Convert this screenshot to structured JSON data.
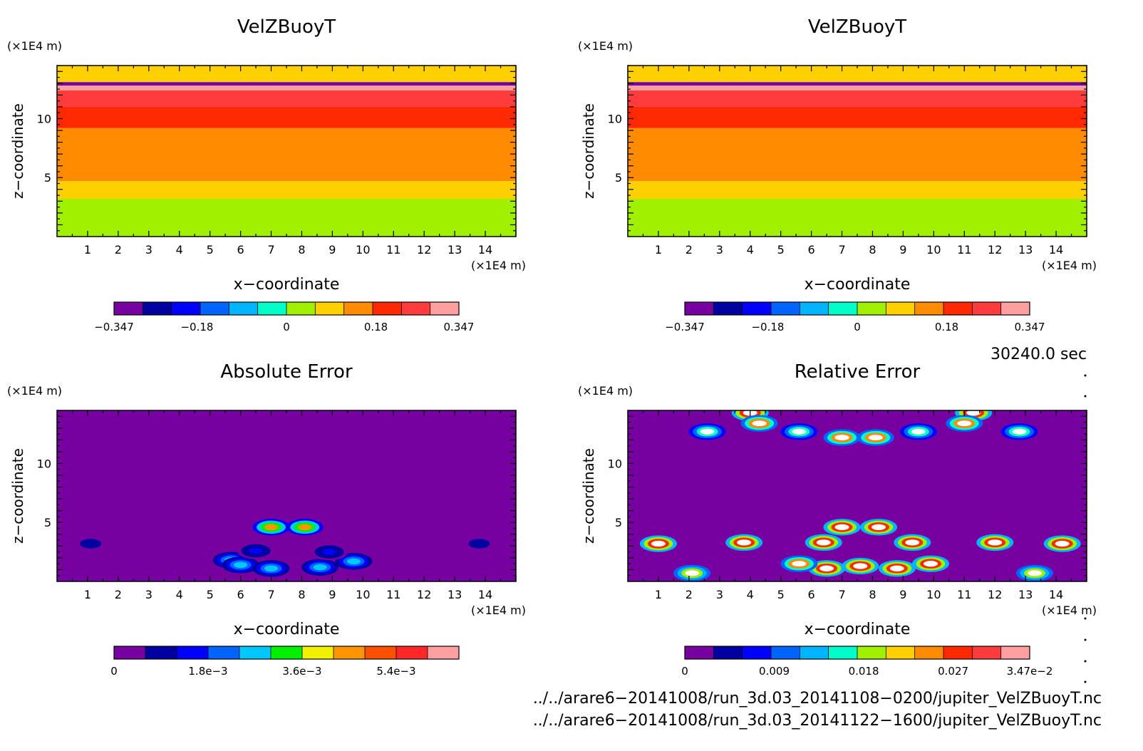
{
  "panels": [
    {
      "title": "VelZBuoyT",
      "z_unit": "(×1E4 m)",
      "x_unit": "(×1E4 m)",
      "xlabel": "x−coordinate",
      "ylabel": "z−coordinate",
      "x_ticks": [
        "1",
        "2",
        "3",
        "4",
        "5",
        "6",
        "7",
        "8",
        "9",
        "10",
        "11",
        "12",
        "13",
        "14"
      ],
      "z_ticks": [
        "5",
        "10"
      ],
      "colorbar": {
        "colors": [
          "#7700a0",
          "#0000a0",
          "#0000ff",
          "#0064ff",
          "#00b4ff",
          "#00ffc8",
          "#a0f000",
          "#ffd000",
          "#ff8c00",
          "#ff2800",
          "#ff3c3c",
          "#ffa0a0"
        ],
        "tick_labels": [
          "−0.347",
          "−0.18",
          "0",
          "0.18",
          "0.347"
        ]
      }
    },
    {
      "title": "VelZBuoyT",
      "z_unit": "(×1E4 m)",
      "x_unit": "(×1E4 m)",
      "xlabel": "x−coordinate",
      "ylabel": "z−coordinate",
      "x_ticks": [
        "1",
        "2",
        "3",
        "4",
        "5",
        "6",
        "7",
        "8",
        "9",
        "10",
        "11",
        "12",
        "13",
        "14"
      ],
      "z_ticks": [
        "5",
        "10"
      ],
      "colorbar": {
        "colors": [
          "#7700a0",
          "#0000a0",
          "#0000ff",
          "#0064ff",
          "#00b4ff",
          "#00ffc8",
          "#a0f000",
          "#ffd000",
          "#ff8c00",
          "#ff2800",
          "#ff3c3c",
          "#ffa0a0"
        ],
        "tick_labels": [
          "−0.347",
          "−0.18",
          "0",
          "0.18",
          "0.347"
        ]
      }
    },
    {
      "title": "Absolute Error",
      "z_unit": "(×1E4 m)",
      "x_unit": "(×1E4 m)",
      "xlabel": "x−coordinate",
      "ylabel": "z−coordinate",
      "x_ticks": [
        "1",
        "2",
        "3",
        "4",
        "5",
        "6",
        "7",
        "8",
        "9",
        "10",
        "11",
        "12",
        "13",
        "14"
      ],
      "z_ticks": [
        "5",
        "10"
      ],
      "colorbar": {
        "colors": [
          "#7700a0",
          "#0000a0",
          "#0000ff",
          "#0064ff",
          "#00c8ff",
          "#00f000",
          "#f0f000",
          "#ff9600",
          "#ff5000",
          "#ff2828",
          "#ffa0a0"
        ],
        "tick_labels": [
          "0",
          "1.8e−3",
          "3.6e−3",
          "5.4e−3"
        ]
      }
    },
    {
      "title": "Relative Error",
      "z_unit": "(×1E4 m)",
      "x_unit": "(×1E4 m)",
      "xlabel": "x−coordinate",
      "ylabel": "z−coordinate",
      "x_ticks": [
        "1",
        "2",
        "3",
        "4",
        "5",
        "6",
        "7",
        "8",
        "9",
        "10",
        "11",
        "12",
        "13",
        "14"
      ],
      "z_ticks": [
        "5",
        "10"
      ],
      "colorbar": {
        "colors": [
          "#7700a0",
          "#0000a0",
          "#0000ff",
          "#0064ff",
          "#00b4ff",
          "#00ffc8",
          "#a0f000",
          "#ffd000",
          "#ff8c00",
          "#ff2800",
          "#ff3c3c",
          "#ffa0a0"
        ],
        "tick_labels": [
          "0",
          "0.009",
          "0.018",
          "0.027",
          "3.47e−2"
        ]
      }
    }
  ],
  "time_label": "30240.0 sec",
  "file_paths": [
    "../../arare6−20141008/run_3d.03_20141108−0200/jupiter_VelZBuoyT.nc",
    "../../arare6−20141008/run_3d.03_20141122−1600/jupiter_VelZBuoyT.nc"
  ],
  "chart_data": [
    {
      "type": "heatmap",
      "title": "VelZBuoyT",
      "xlabel": "x−coordinate",
      "ylabel": "z−coordinate",
      "x_range": [
        0,
        15
      ],
      "z_range": [
        0,
        14.5
      ],
      "levels": [
        -0.347,
        -0.289,
        -0.231,
        -0.174,
        -0.116,
        -0.058,
        0,
        0.058,
        0.116,
        0.174,
        0.231,
        0.289,
        0.347
      ],
      "z_bands": [
        {
          "z_from": 0,
          "z_to": 3.2,
          "value": 0.03
        },
        {
          "z_from": 3.2,
          "z_to": 4.7,
          "value": 0.08
        },
        {
          "z_from": 4.7,
          "z_to": 9.2,
          "value": 0.14
        },
        {
          "z_from": 9.2,
          "z_to": 11.0,
          "value": 0.2
        },
        {
          "z_from": 11.0,
          "z_to": 12.4,
          "value": 0.26
        },
        {
          "z_from": 12.4,
          "z_to": 12.8,
          "value": 0.33
        },
        {
          "z_from": 12.8,
          "z_to": 13.1,
          "value": -0.3
        },
        {
          "z_from": 13.1,
          "z_to": 13.6,
          "value": 0.08
        },
        {
          "z_from": 13.6,
          "z_to": 14.5,
          "value": 0.08
        }
      ]
    },
    {
      "type": "heatmap",
      "title": "VelZBuoyT",
      "xlabel": "x−coordinate",
      "ylabel": "z−coordinate",
      "x_range": [
        0,
        15
      ],
      "z_range": [
        0,
        14.5
      ],
      "levels": [
        -0.347,
        -0.289,
        -0.231,
        -0.174,
        -0.116,
        -0.058,
        0,
        0.058,
        0.116,
        0.174,
        0.231,
        0.289,
        0.347
      ],
      "z_bands": [
        {
          "z_from": 0,
          "z_to": 3.2,
          "value": 0.03
        },
        {
          "z_from": 3.2,
          "z_to": 4.7,
          "value": 0.08
        },
        {
          "z_from": 4.7,
          "z_to": 9.2,
          "value": 0.14
        },
        {
          "z_from": 9.2,
          "z_to": 11.0,
          "value": 0.2
        },
        {
          "z_from": 11.0,
          "z_to": 12.4,
          "value": 0.26
        },
        {
          "z_from": 12.4,
          "z_to": 12.8,
          "value": 0.33
        },
        {
          "z_from": 12.8,
          "z_to": 13.1,
          "value": -0.3
        },
        {
          "z_from": 13.1,
          "z_to": 13.6,
          "value": 0.08
        },
        {
          "z_from": 13.6,
          "z_to": 14.5,
          "value": 0.08
        }
      ]
    },
    {
      "type": "heatmap",
      "title": "Absolute Error",
      "xlabel": "x−coordinate",
      "ylabel": "z−coordinate",
      "x_range": [
        0,
        15
      ],
      "z_range": [
        0,
        14.5
      ],
      "levels": [
        0,
        0.0006,
        0.0012,
        0.0018,
        0.0024,
        0.003,
        0.0036,
        0.0042,
        0.0048,
        0.0054,
        0.006,
        0.0066
      ],
      "background_value": 0,
      "blobs": [
        {
          "x": 7.0,
          "z": 4.6,
          "value": 0.0045
        },
        {
          "x": 8.1,
          "z": 4.6,
          "value": 0.0045
        },
        {
          "x": 5.7,
          "z": 1.8,
          "value": 0.0027
        },
        {
          "x": 6.0,
          "z": 1.4,
          "value": 0.003
        },
        {
          "x": 7.0,
          "z": 1.1,
          "value": 0.0025
        },
        {
          "x": 8.6,
          "z": 1.2,
          "value": 0.0025
        },
        {
          "x": 9.7,
          "z": 1.7,
          "value": 0.0027
        },
        {
          "x": 6.5,
          "z": 2.6,
          "value": 0.0015
        },
        {
          "x": 8.9,
          "z": 2.5,
          "value": 0.0015
        },
        {
          "x": 1.1,
          "z": 3.2,
          "value": 0.0008
        },
        {
          "x": 13.8,
          "z": 3.2,
          "value": 0.0008
        }
      ]
    },
    {
      "type": "heatmap",
      "title": "Relative Error",
      "xlabel": "x−coordinate",
      "ylabel": "z−coordinate",
      "x_range": [
        0,
        15
      ],
      "z_range": [
        0,
        14.5
      ],
      "levels": [
        0,
        0.0029,
        0.0058,
        0.0087,
        0.0116,
        0.0145,
        0.0174,
        0.0203,
        0.0232,
        0.0261,
        0.029,
        0.0319,
        0.0347
      ],
      "background_value": 0,
      "blobs": [
        {
          "x": 4.0,
          "z": 14.3,
          "value": 0.0347
        },
        {
          "x": 11.3,
          "z": 14.3,
          "value": 0.0347
        },
        {
          "x": 4.3,
          "z": 13.4,
          "value": 0.03
        },
        {
          "x": 11.0,
          "z": 13.4,
          "value": 0.03
        },
        {
          "x": 2.6,
          "z": 12.7,
          "value": 0.02
        },
        {
          "x": 5.6,
          "z": 12.7,
          "value": 0.02
        },
        {
          "x": 9.5,
          "z": 12.7,
          "value": 0.02
        },
        {
          "x": 12.8,
          "z": 12.7,
          "value": 0.02
        },
        {
          "x": 7.0,
          "z": 12.2,
          "value": 0.03
        },
        {
          "x": 8.1,
          "z": 12.2,
          "value": 0.03
        },
        {
          "x": 7.0,
          "z": 4.6,
          "value": 0.0347
        },
        {
          "x": 8.2,
          "z": 4.6,
          "value": 0.0347
        },
        {
          "x": 1.0,
          "z": 3.2,
          "value": 0.0347
        },
        {
          "x": 3.8,
          "z": 3.3,
          "value": 0.0347
        },
        {
          "x": 6.4,
          "z": 3.3,
          "value": 0.0347
        },
        {
          "x": 9.3,
          "z": 3.3,
          "value": 0.0347
        },
        {
          "x": 12.0,
          "z": 3.3,
          "value": 0.0347
        },
        {
          "x": 14.2,
          "z": 3.2,
          "value": 0.0347
        },
        {
          "x": 7.6,
          "z": 1.3,
          "value": 0.0347
        },
        {
          "x": 6.5,
          "z": 1.1,
          "value": 0.0347
        },
        {
          "x": 8.8,
          "z": 1.1,
          "value": 0.0347
        },
        {
          "x": 9.9,
          "z": 1.5,
          "value": 0.0347
        },
        {
          "x": 5.6,
          "z": 1.5,
          "value": 0.03
        },
        {
          "x": 2.1,
          "z": 0.7,
          "value": 0.025
        },
        {
          "x": 13.3,
          "z": 0.7,
          "value": 0.025
        }
      ]
    }
  ]
}
